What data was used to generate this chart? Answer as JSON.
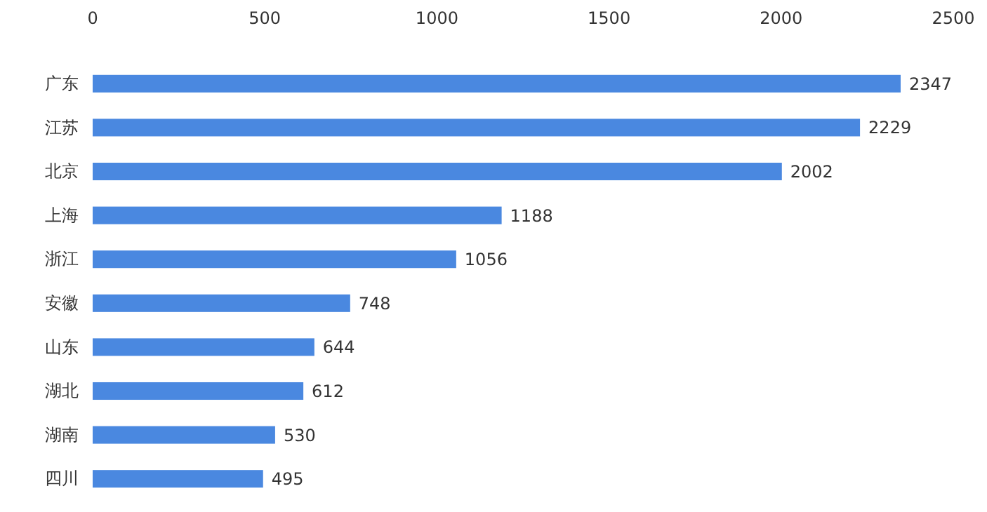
{
  "chart_data": {
    "type": "bar",
    "orientation": "horizontal",
    "categories": [
      "广东",
      "江苏",
      "北京",
      "上海",
      "浙江",
      "安徽",
      "山东",
      "湖北",
      "湖南",
      "四川"
    ],
    "values": [
      2347,
      2229,
      2002,
      1188,
      1056,
      748,
      644,
      612,
      530,
      495
    ],
    "color": "#4a88e0",
    "xlim": [
      0,
      2500
    ],
    "xticks": [
      0,
      500,
      1000,
      1500,
      2000,
      2500
    ],
    "grid": false,
    "data_labels": true
  }
}
